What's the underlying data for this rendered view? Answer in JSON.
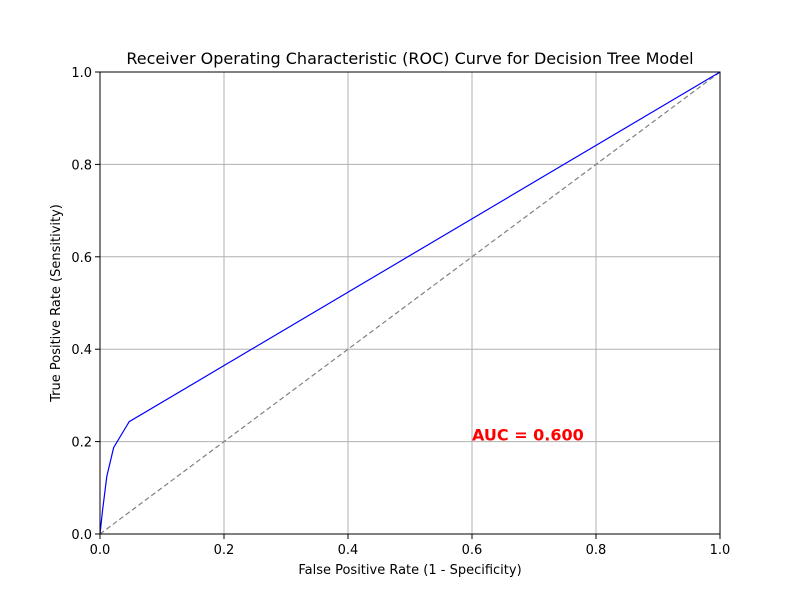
{
  "chart_data": {
    "type": "line",
    "title": "Receiver Operating Characteristic (ROC) Curve for Decision Tree Model",
    "xlabel": "False Positive Rate (1 - Specificity)",
    "ylabel": "True Positive Rate (Sensitivity)",
    "xlim": [
      0,
      1
    ],
    "ylim": [
      0,
      1
    ],
    "xticks": [
      "0.0",
      "0.2",
      "0.4",
      "0.6",
      "0.8",
      "1.0"
    ],
    "yticks": [
      "0.0",
      "0.2",
      "0.4",
      "0.6",
      "0.8",
      "1.0"
    ],
    "grid": true,
    "series": [
      {
        "color": "#0000ff",
        "line_style": "solid",
        "x": [
          0.0,
          0.004,
          0.011,
          0.022,
          0.047,
          1.0
        ],
        "y": [
          0.0,
          0.05,
          0.125,
          0.187,
          0.243,
          1.0
        ]
      },
      {
        "color": "#808080",
        "line_style": "dashed",
        "x": [
          0.0,
          1.0
        ],
        "y": [
          0.0,
          1.0
        ]
      }
    ],
    "annotation": {
      "text": "AUC = 0.600",
      "x": 0.6,
      "y": 0.2,
      "color": "#ff0000"
    }
  }
}
